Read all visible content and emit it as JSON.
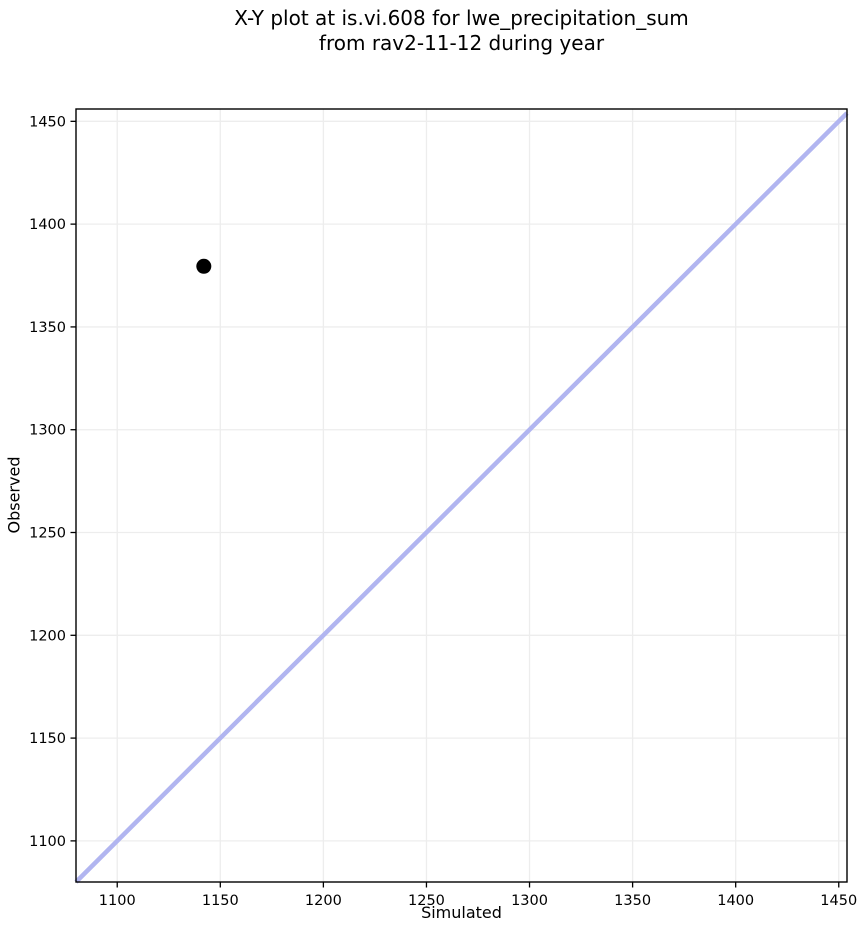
{
  "figure": {
    "kind": "matplotlib-style x-y scatter figure"
  },
  "chart_data": {
    "type": "scatter",
    "title": "X-Y plot at is.vi.608 for lwe_precipitation_sum\nfrom rav2-11-12 during year",
    "xlabel": "Simulated",
    "ylabel": "Observed",
    "xlim": [
      1080,
      1454
    ],
    "ylim": [
      1080,
      1456
    ],
    "xticks": [
      1100,
      1150,
      1200,
      1250,
      1300,
      1350,
      1400,
      1450
    ],
    "yticks": [
      1100,
      1150,
      1200,
      1250,
      1300,
      1350,
      1400,
      1450
    ],
    "grid": true,
    "legend": false,
    "series": [
      {
        "name": "identity-line",
        "kind": "line",
        "color": "#b1b5f0",
        "width": 4.5,
        "points": [
          {
            "x": 1080,
            "y": 1080
          },
          {
            "x": 1454,
            "y": 1454
          }
        ]
      },
      {
        "name": "observed-vs-simulated",
        "kind": "scatter",
        "color": "#000000",
        "marker_size": 15,
        "points": [
          {
            "x": 1142,
            "y": 1379.5
          }
        ]
      }
    ],
    "colors": {
      "background": "#ffffff",
      "grid": "#ededed",
      "spine": "#000000",
      "tick": "#000000",
      "text": "#000000"
    }
  }
}
